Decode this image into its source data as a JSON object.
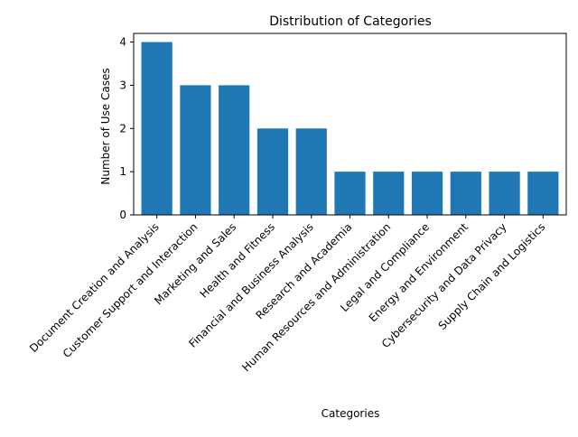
{
  "chart_data": {
    "type": "bar",
    "title": "Distribution of Categories",
    "xlabel": "Categories",
    "ylabel": "Number of Use Cases",
    "categories": [
      "Document Creation and Analysis",
      "Customer Support and Interaction",
      "Marketing and Sales",
      "Health and Fitness",
      "Financial and Business Analysis",
      "Research and Academia",
      "Human Resources and Administration",
      "Legal and Compliance",
      "Energy and Environment",
      "Cybersecurity and Data Privacy",
      "Supply Chain and Logistics"
    ],
    "values": [
      4,
      3,
      3,
      2,
      2,
      1,
      1,
      1,
      1,
      1,
      1
    ],
    "ylim": [
      0,
      4.2
    ],
    "yticks": [
      0,
      1,
      2,
      3,
      4
    ],
    "grid": false,
    "bar_color": "#1f77b4"
  }
}
